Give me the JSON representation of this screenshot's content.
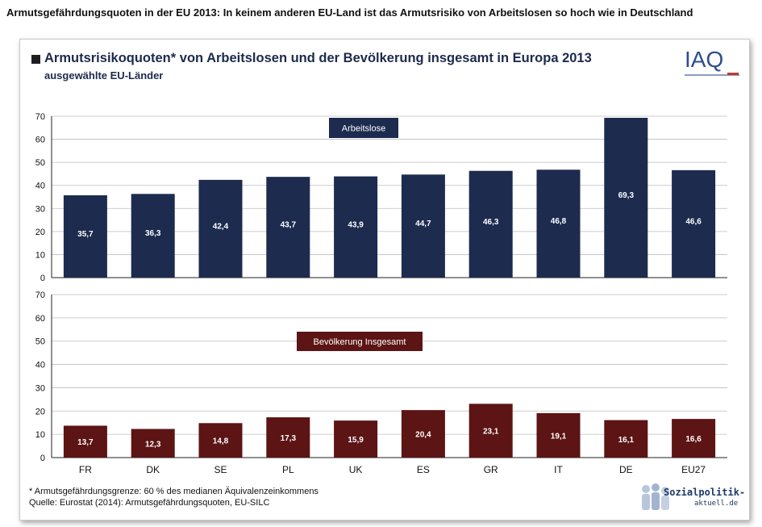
{
  "page_title": "Armutsgefährdungsquoten in der EU 2013: In keinem anderen EU-Land ist das Armutsrisiko von Arbeitslosen so hoch wie in Deutschland",
  "chart_title": "Armutsrisikoquoten* von Arbeitslosen und der Bevölkerung insgesamt in Europa 2013",
  "chart_subtitle": "ausgewählte EU-Länder",
  "logo_text": "IAQ",
  "footnote_1": "* Armutsgefährdungsgrenze: 60 % des medianen Äquivalenzeinkommens",
  "footnote_2": "Quelle: Eurostat (2014): Armutsgefährdungsquoten, EU-SILC",
  "brand_name": "Sozialpolitik-",
  "brand_domain": "aktuell.de",
  "colors": {
    "arbeitslose": "#1c2b4e",
    "bevoelkerung": "#5c1414"
  },
  "chart_data": [
    {
      "type": "bar",
      "series_label": "Arbeitslose",
      "categories": [
        "FR",
        "DK",
        "SE",
        "PL",
        "UK",
        "ES",
        "GR",
        "IT",
        "DE",
        "EU27"
      ],
      "values": [
        35.7,
        36.3,
        42.4,
        43.7,
        43.9,
        44.7,
        46.3,
        46.8,
        69.3,
        46.6
      ],
      "value_labels": [
        "35,7",
        "36,3",
        "42,4",
        "43,7",
        "43,9",
        "44,7",
        "46,3",
        "46,8",
        "69,3",
        "46,6"
      ],
      "ylim": [
        0,
        70
      ],
      "yticks": [
        0,
        10,
        20,
        30,
        40,
        50,
        60,
        70
      ],
      "grid": true,
      "color": "#1c2b4e"
    },
    {
      "type": "bar",
      "series_label": "Bevölkerung Insgesamt",
      "categories": [
        "FR",
        "DK",
        "SE",
        "PL",
        "UK",
        "ES",
        "GR",
        "IT",
        "DE",
        "EU27"
      ],
      "values": [
        13.7,
        12.3,
        14.8,
        17.3,
        15.9,
        20.4,
        23.1,
        19.1,
        16.1,
        16.6
      ],
      "value_labels": [
        "13,7",
        "12,3",
        "14,8",
        "17,3",
        "15,9",
        "20,4",
        "23,1",
        "19,1",
        "16,1",
        "16,6"
      ],
      "ylim": [
        0,
        70
      ],
      "yticks": [
        0,
        10,
        20,
        30,
        40,
        50,
        60,
        70
      ],
      "grid": true,
      "color": "#5c1414"
    }
  ]
}
